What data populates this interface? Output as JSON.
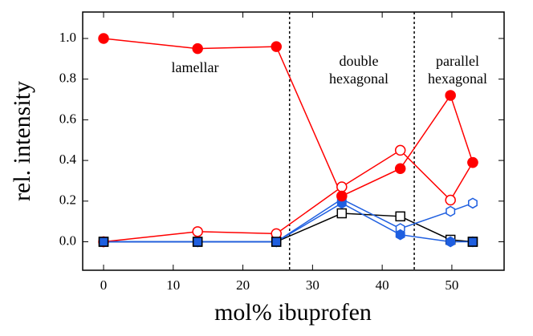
{
  "chart_data": {
    "type": "line",
    "xlabel": "mol% ibuprofen",
    "ylabel": "rel. intensity",
    "x": [
      0,
      13.5,
      24.8,
      34.2,
      42.6,
      49.8,
      53
    ],
    "xlim": [
      -3,
      57.5
    ],
    "ylim": [
      -0.14,
      1.13
    ],
    "xticks": [
      0,
      10,
      20,
      30,
      40,
      50
    ],
    "yticks": [
      {
        "value": 0,
        "label": "0.0"
      },
      {
        "value": 0.2,
        "label": "0.2"
      },
      {
        "value": 0.4,
        "label": "0.4"
      },
      {
        "value": 0.6,
        "label": "0.6"
      },
      {
        "value": 0.8,
        "label": "0.8"
      },
      {
        "value": 1,
        "label": "1.0"
      }
    ],
    "vlines": [
      26.7,
      44.6
    ],
    "annotations": [
      [
        "lamellar"
      ],
      [
        "double",
        "hexagonal"
      ],
      [
        "parallel",
        "hexagonal"
      ]
    ],
    "series": [
      {
        "color": "#000000",
        "marker": "square",
        "filled": false,
        "values": [
          0,
          0,
          0,
          0.14,
          0.125,
          0.01,
          0
        ]
      },
      {
        "color": "#1f5fe0",
        "marker": "hexagon",
        "filled": false,
        "values": [
          0,
          0,
          0,
          0.21,
          0.065,
          0.15,
          0.19
        ]
      },
      {
        "color": "#1f5fe0",
        "marker": "hexagon",
        "filled": true,
        "values": [
          0,
          0,
          0,
          0.19,
          0.035,
          0,
          0
        ]
      },
      {
        "color": "#ff0000",
        "marker": "circle",
        "filled": false,
        "values": [
          0,
          0.05,
          0.04,
          0.27,
          0.45,
          0.205,
          0.39
        ]
      },
      {
        "color": "#ff0000",
        "marker": "circle",
        "filled": true,
        "values": [
          1,
          0.95,
          0.96,
          0.225,
          0.36,
          0.72,
          0.39
        ]
      },
      {
        "color": "#1f5fe0",
        "marker": "square",
        "filled": true,
        "values": [
          0,
          0,
          0,
          null,
          null,
          null,
          0
        ]
      }
    ]
  }
}
